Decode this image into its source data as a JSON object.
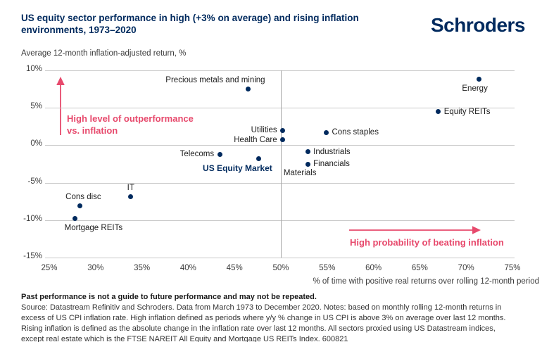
{
  "header": {
    "title_line1": "US equity sector performance in high (+3% on average) and rising inflation",
    "title_line2": "environments, 1973–2020",
    "logo": "Schroders"
  },
  "chart_data": {
    "type": "scatter",
    "title": "US equity sector performance in high (+3% on average) and rising inflation environments, 1973–2020",
    "ylabel": "Average 12-month inflation-adjusted return, %",
    "xlabel": "% of time with positive real returns over rolling 12-month period",
    "xlim": [
      25,
      75
    ],
    "ylim": [
      -15,
      10
    ],
    "x_ticks": [
      25,
      30,
      35,
      40,
      45,
      50,
      55,
      60,
      65,
      70,
      75
    ],
    "y_ticks": [
      10,
      5,
      0,
      -5,
      -10,
      -15
    ],
    "tick_suffix": "%",
    "grid": "horizontal",
    "reference_line_x": 50,
    "legend_position": "none",
    "points": [
      {
        "label": "Precious metals and mining",
        "x": 46.5,
        "y": 7.5,
        "label_pos": "above",
        "shift_x": -47
      },
      {
        "label": "Energy",
        "x": 71.4,
        "y": 8.8,
        "label_pos": "below",
        "shift_x": -6
      },
      {
        "label": "Equity REITs",
        "x": 67.0,
        "y": 4.5,
        "label_pos": "right"
      },
      {
        "label": "Utilities",
        "x": 50.2,
        "y": 2.0,
        "label_pos": "left"
      },
      {
        "label": "Cons staples",
        "x": 54.9,
        "y": 1.7,
        "label_pos": "right"
      },
      {
        "label": "Health Care",
        "x": 50.2,
        "y": 0.7,
        "label_pos": "left"
      },
      {
        "label": "Industrials",
        "x": 52.9,
        "y": -0.9,
        "label_pos": "right"
      },
      {
        "label": "Telecoms",
        "x": 43.4,
        "y": -1.2,
        "label_pos": "left"
      },
      {
        "label": "US Equity Market",
        "x": 47.6,
        "y": -1.8,
        "label_pos": "below",
        "shift_x": -30,
        "emphasis": true
      },
      {
        "label": "Financials",
        "x": 52.9,
        "y": -2.5,
        "label_pos": "right"
      },
      {
        "label": "Materials",
        "x": 52.9,
        "y": -2.5,
        "label_pos": "below",
        "shift_x": -11,
        "dot": false
      },
      {
        "label": "IT",
        "x": 33.8,
        "y": -6.9,
        "label_pos": "above"
      },
      {
        "label": "Cons disc",
        "x": 28.3,
        "y": -8.1,
        "label_pos": "above",
        "shift_x": 5
      },
      {
        "label": "Mortgage REITs",
        "x": 27.8,
        "y": -9.8,
        "label_pos": "below",
        "shift_x": 26
      }
    ],
    "annotations": [
      {
        "arrow": "up",
        "line1": "High level of outperformance",
        "line2": "vs. inflation"
      },
      {
        "arrow": "right",
        "line1": "High probability of beating inflation"
      }
    ]
  },
  "footer": {
    "bold_line": "Past performance is not a guide to future performance and may not be repeated.",
    "source_lines": [
      "Source: Datastream Refinitiv and Schroders. Data from March 1973 to December 2020. Notes: based on monthly rolling 12-month returns in",
      "excess of US CPI inflation rate. High inflation defined as periods where y/y % change in US CPI is above 3% on average over last 12 months.",
      "Rising inflation is defined as the absolute change in the inflation rate over last 12 months. All sectors proxied using US Datastream indices,",
      "except real estate which is the FTSE NAREIT All Equity and Mortgage US REITs Index. 600821"
    ]
  },
  "colors": {
    "navy": "#002a5e",
    "pink": "#e7496c",
    "gridline": "#c9c9c9",
    "reference_line": "#a9a9a9",
    "label_text": "#1d1d1d",
    "axis_text": "#3c3c3c"
  }
}
